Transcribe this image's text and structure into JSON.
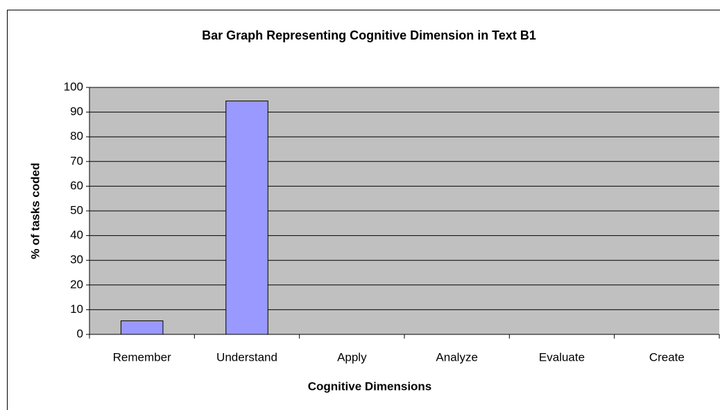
{
  "chart_data": {
    "type": "bar",
    "title": "Bar Graph Representing Cognitive Dimension in Text B1",
    "x_label": "Cognitive Dimensions",
    "y_label": "% of tasks coded",
    "categories": [
      "Remember",
      "Understand",
      "Apply",
      "Analyze",
      "Evaluate",
      "Create"
    ],
    "values": [
      5.5,
      94.5,
      0,
      0,
      0,
      0
    ],
    "color": "#9999ff",
    "ylim": [
      0,
      100
    ],
    "yticks": [
      0,
      10,
      20,
      30,
      40,
      50,
      60,
      70,
      80,
      90,
      100
    ],
    "grid": true
  }
}
